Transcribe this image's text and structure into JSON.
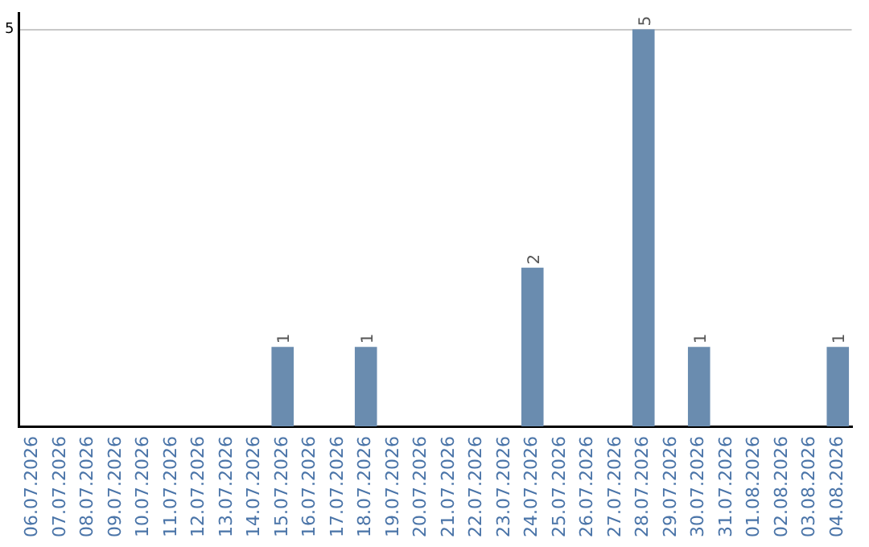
{
  "chart_data": {
    "type": "bar",
    "categories": [
      "06.07.2026",
      "07.07.2026",
      "08.07.2026",
      "09.07.2026",
      "10.07.2026",
      "11.07.2026",
      "12.07.2026",
      "13.07.2026",
      "14.07.2026",
      "15.07.2026",
      "16.07.2026",
      "17.07.2026",
      "18.07.2026",
      "19.07.2026",
      "20.07.2026",
      "21.07.2026",
      "22.07.2026",
      "23.07.2026",
      "24.07.2026",
      "25.07.2026",
      "26.07.2026",
      "27.07.2026",
      "28.07.2026",
      "29.07.2026",
      "30.07.2026",
      "31.07.2026",
      "01.08.2026",
      "02.08.2026",
      "03.08.2026",
      "04.08.2026"
    ],
    "values": [
      0,
      0,
      0,
      0,
      0,
      0,
      0,
      0,
      0,
      1,
      0,
      0,
      1,
      0,
      0,
      0,
      0,
      0,
      2,
      0,
      0,
      0,
      5,
      0,
      1,
      0,
      0,
      0,
      0,
      1
    ],
    "color": "#6a8caf",
    "value_labels": [
      null,
      null,
      null,
      null,
      null,
      null,
      null,
      null,
      null,
      "1",
      null,
      null,
      "1",
      null,
      null,
      null,
      null,
      null,
      "2",
      null,
      null,
      null,
      "5",
      null,
      "1",
      null,
      null,
      null,
      null,
      "1"
    ],
    "ylim": [
      0,
      5.2
    ],
    "yticks": [
      5
    ],
    "grid": "y",
    "legend": false
  }
}
